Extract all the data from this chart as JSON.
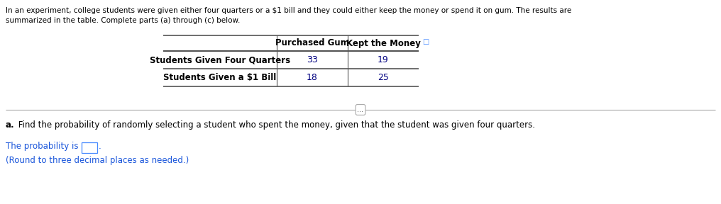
{
  "intro_text_line1": "In an experiment, college students were given either four quarters or a $1 bill and they could either keep the money or spend it on gum. The results are",
  "intro_text_line2": "summarized in the table. Complete parts (a) through (c) below.",
  "col_headers": [
    "Purchased Gum",
    "Kept the Money"
  ],
  "row_labels": [
    "Students Given Four Quarters",
    "Students Given a $1 Bill"
  ],
  "data": [
    [
      33,
      19
    ],
    [
      18,
      25
    ]
  ],
  "separator_text": "...",
  "part_a_bold": "a.",
  "part_a_text": " Find the probability of randomly selecting a student who spent the money, given that the student was given four quarters.",
  "prob_label": "The probability is",
  "round_note": "(Round to three decimal places as needed.)",
  "text_color_black": "#000000",
  "text_color_blue": "#1a56db",
  "text_color_darkblue": "#000080",
  "text_color_intro": "#000000",
  "bg_color": "#FFFFFF",
  "input_box_border": "#4488FF",
  "table_data_color": "#000080",
  "sep_line_color": "#aaaaaa",
  "table_line_color": "#555555"
}
